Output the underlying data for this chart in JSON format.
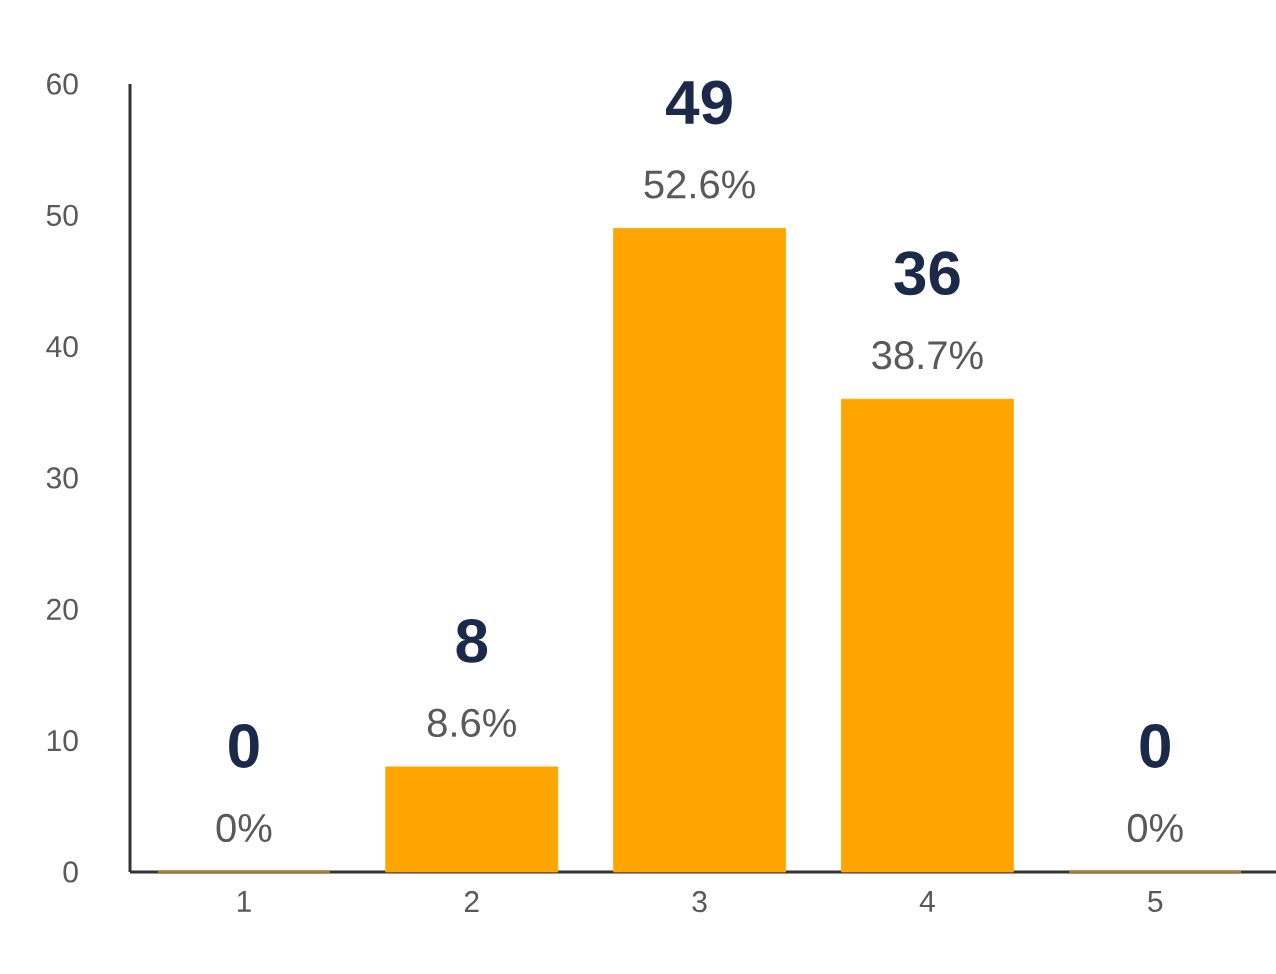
{
  "chart_data": {
    "type": "bar",
    "categories": [
      "1",
      "2",
      "3",
      "4",
      "5"
    ],
    "values": [
      0,
      8,
      49,
      36,
      0
    ],
    "annotations": [
      {
        "text": "0%",
        "x": "1",
        "y": 0
      },
      {
        "text": "8.6%",
        "x": "2",
        "y": 8
      },
      {
        "text": "52.6%",
        "x": "3",
        "y": 49
      },
      {
        "text": "38.7%",
        "x": "4",
        "y": 36
      },
      {
        "text": "0%",
        "x": "5",
        "y": 0
      }
    ],
    "data_labels": true,
    "color": "#ffa500",
    "ylim": [
      0,
      60
    ],
    "yticks": [
      0,
      10,
      20,
      30,
      40,
      50,
      60
    ],
    "grid": false
  }
}
